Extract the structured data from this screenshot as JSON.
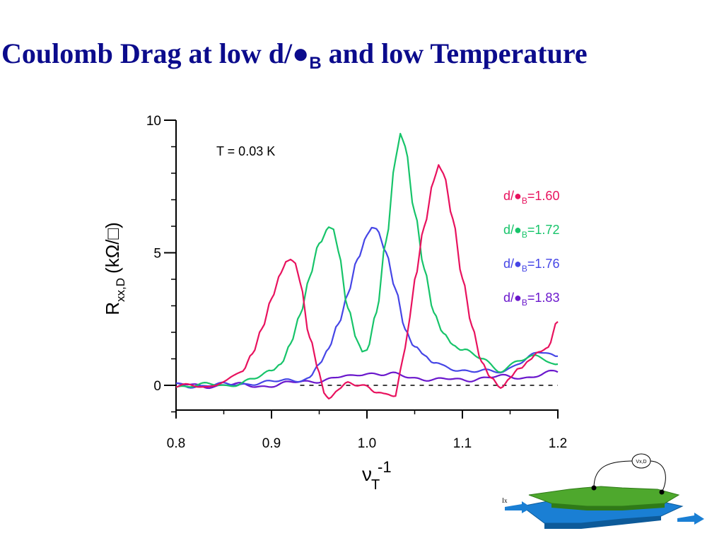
{
  "title": {
    "prefix": "Coulomb Drag at low d/",
    "dot": "●",
    "sub": "B",
    "suffix": " and low Temperature"
  },
  "chart_data": {
    "type": "line",
    "xlabel": "ν",
    "xlabel_sub": "T",
    "xlabel_sup": "-1",
    "ylabel": "R",
    "ylabel_sub": "xx,D",
    "ylabel_unit": "(kΩ/□)",
    "xlim": [
      0.8,
      1.2
    ],
    "ylim": [
      -1,
      10
    ],
    "x_ticks": [
      "0.8",
      "0.9",
      "1.0",
      "1.1",
      "1.2"
    ],
    "y_ticks": [
      "0",
      "5",
      "10"
    ],
    "annotation": "T = 0.03 K",
    "reference_line": {
      "y": 0,
      "style": "dashed",
      "x_from": 0.93,
      "x_to": 1.2
    },
    "series": [
      {
        "name": "d/●B=1.60",
        "color": "#e8125e",
        "x": [
          0.8,
          0.83,
          0.85,
          0.87,
          0.88,
          0.89,
          0.9,
          0.91,
          0.915,
          0.92,
          0.925,
          0.93,
          0.94,
          0.95,
          0.955,
          0.96,
          0.97,
          0.98,
          0.99,
          1.0,
          1.01,
          1.02,
          1.03,
          1.035,
          1.04,
          1.045,
          1.05,
          1.06,
          1.07,
          1.075,
          1.08,
          1.09,
          1.1,
          1.11,
          1.12,
          1.13,
          1.14,
          1.15,
          1.16,
          1.17,
          1.18,
          1.19,
          1.2
        ],
        "y": [
          0.0,
          -0.1,
          0.2,
          0.5,
          1.1,
          2.2,
          3.3,
          4.3,
          4.7,
          4.7,
          4.5,
          3.8,
          1.8,
          0.5,
          -0.2,
          -0.4,
          -0.2,
          0.1,
          -0.1,
          0.0,
          -0.2,
          -0.3,
          -0.4,
          0.5,
          1.3,
          2.5,
          4.0,
          6.0,
          7.8,
          8.4,
          8.0,
          6.2,
          4.0,
          2.2,
          1.0,
          0.3,
          -0.1,
          0.2,
          0.6,
          1.0,
          1.3,
          1.5,
          2.4
        ]
      },
      {
        "name": "d/●B=1.72",
        "color": "#17c46a",
        "x": [
          0.8,
          0.85,
          0.88,
          0.9,
          0.91,
          0.92,
          0.93,
          0.94,
          0.95,
          0.96,
          0.965,
          0.97,
          0.98,
          0.99,
          0.995,
          1.0,
          1.01,
          1.02,
          1.03,
          1.035,
          1.04,
          1.05,
          1.06,
          1.07,
          1.08,
          1.09,
          1.1,
          1.12,
          1.14,
          1.16,
          1.18,
          1.2
        ],
        "y": [
          0.0,
          0.0,
          0.2,
          0.5,
          0.9,
          1.6,
          2.7,
          4.0,
          5.3,
          6.0,
          5.9,
          5.1,
          3.0,
          1.6,
          1.2,
          1.3,
          2.7,
          5.5,
          8.6,
          9.5,
          9.0,
          6.5,
          4.3,
          2.8,
          2.0,
          1.6,
          1.3,
          1.0,
          0.6,
          0.9,
          1.1,
          0.8
        ]
      },
      {
        "name": "d/●B=1.76",
        "color": "#4646e6",
        "x": [
          0.8,
          0.85,
          0.88,
          0.9,
          0.92,
          0.94,
          0.95,
          0.96,
          0.97,
          0.98,
          0.99,
          1.0,
          1.005,
          1.01,
          1.02,
          1.03,
          1.04,
          1.05,
          1.06,
          1.07,
          1.08,
          1.1,
          1.12,
          1.14,
          1.16,
          1.18,
          1.2
        ],
        "y": [
          0.0,
          0.0,
          0.1,
          0.1,
          0.2,
          0.3,
          0.8,
          1.3,
          2.3,
          3.5,
          4.8,
          5.7,
          5.9,
          5.8,
          5.0,
          3.6,
          2.2,
          1.5,
          1.1,
          0.8,
          0.7,
          0.6,
          0.5,
          0.5,
          0.9,
          1.2,
          1.1
        ]
      },
      {
        "name": "d/●B=1.83",
        "color": "#6a17cc",
        "x": [
          0.8,
          0.85,
          0.9,
          0.95,
          0.98,
          1.0,
          1.02,
          1.05,
          1.08,
          1.1,
          1.12,
          1.14,
          1.16,
          1.18,
          1.2
        ],
        "y": [
          0.0,
          0.0,
          0.0,
          0.2,
          0.3,
          0.5,
          0.4,
          0.3,
          0.2,
          0.2,
          0.3,
          0.3,
          0.3,
          0.4,
          0.5
        ]
      }
    ],
    "legend_position": "right"
  },
  "inset": {
    "meter_label": "Vx,D",
    "current_label": "Ix"
  }
}
